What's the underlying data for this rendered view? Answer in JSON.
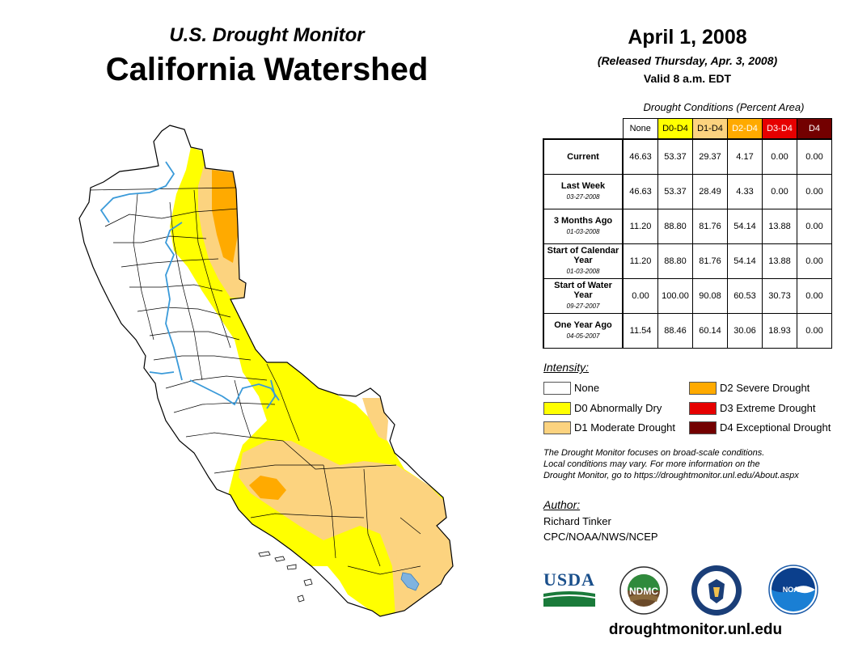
{
  "header": {
    "subtitle": "U.S. Drought Monitor",
    "title": "California Watershed",
    "date": "April 1, 2008",
    "released": "(Released Thursday, Apr. 3, 2008)",
    "valid": "Valid 8 a.m. EDT"
  },
  "table": {
    "caption": "Drought Conditions (Percent Area)",
    "columns": [
      {
        "label": "None",
        "bg": "#ffffff",
        "fg": "#000000"
      },
      {
        "label": "D0-D4",
        "bg": "#ffff00",
        "fg": "#000000"
      },
      {
        "label": "D1-D4",
        "bg": "#fcd37f",
        "fg": "#000000"
      },
      {
        "label": "D2-D4",
        "bg": "#ffaa00",
        "fg": "#ffffff"
      },
      {
        "label": "D3-D4",
        "bg": "#e60000",
        "fg": "#ffffff"
      },
      {
        "label": "D4",
        "bg": "#730000",
        "fg": "#ffffff"
      }
    ],
    "rows": [
      {
        "label": "Current",
        "date": "",
        "values": [
          "46.63",
          "53.37",
          "29.37",
          "4.17",
          "0.00",
          "0.00"
        ]
      },
      {
        "label": "Last Week",
        "date": "03-27-2008",
        "values": [
          "46.63",
          "53.37",
          "28.49",
          "4.33",
          "0.00",
          "0.00"
        ]
      },
      {
        "label": "3 Months Ago",
        "date": "01-03-2008",
        "values": [
          "11.20",
          "88.80",
          "81.76",
          "54.14",
          "13.88",
          "0.00"
        ]
      },
      {
        "label": "Start of Calendar Year",
        "date": "01-03-2008",
        "values": [
          "11.20",
          "88.80",
          "81.76",
          "54.14",
          "13.88",
          "0.00"
        ]
      },
      {
        "label": "Start of Water Year",
        "date": "09-27-2007",
        "values": [
          "0.00",
          "100.00",
          "90.08",
          "60.53",
          "30.73",
          "0.00"
        ]
      },
      {
        "label": "One Year Ago",
        "date": "04-05-2007",
        "values": [
          "11.54",
          "88.46",
          "60.14",
          "30.06",
          "18.93",
          "0.00"
        ]
      }
    ]
  },
  "legend": {
    "title": "Intensity:",
    "items": [
      {
        "label": "None",
        "color": "#ffffff"
      },
      {
        "label": "D0 Abnormally Dry",
        "color": "#ffff00"
      },
      {
        "label": "D1 Moderate Drought",
        "color": "#fcd37f"
      },
      {
        "label": "D2 Severe Drought",
        "color": "#ffaa00"
      },
      {
        "label": "D3 Extreme Drought",
        "color": "#e60000"
      },
      {
        "label": "D4 Exceptional Drought",
        "color": "#730000"
      }
    ]
  },
  "note": {
    "line1": "The Drought Monitor focuses on broad-scale conditions.",
    "line2": "Local conditions may vary. For more information on the",
    "line3": "Drought Monitor, go to https://droughtmonitor.unl.edu/About.aspx"
  },
  "author": {
    "title": "Author:",
    "name": "Richard Tinker",
    "org": "CPC/NOAA/NWS/NCEP"
  },
  "logos": {
    "usda": "USDA",
    "ndmc": "NDMC",
    "noaa": "NOAA"
  },
  "footer": {
    "site": "droughtmonitor.unl.edu"
  },
  "colors": {
    "river": "#3a9ad9",
    "d0": "#ffff00",
    "d1": "#fcd37f",
    "d2": "#ffaa00"
  }
}
